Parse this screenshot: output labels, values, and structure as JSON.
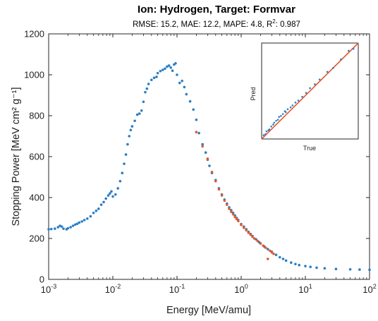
{
  "chart_data": [
    {
      "type": "scatter",
      "title": "Ion: Hydrogen,  Target: Formvar",
      "subtitle": "RMSE: 15.2,  MAE: 12.2,  MAPE: 4.8,  R",
      "subtitle_sup": "2",
      "subtitle_tail": ": 0.987",
      "xlabel": "Energy [MeV/amu]",
      "ylabel": "Stopping Power [MeV cm² g⁻¹]",
      "xscale": "log",
      "xlim": [
        0.001,
        100
      ],
      "ylim": [
        0,
        1200
      ],
      "x_ticks": [
        {
          "base": "10",
          "exp": "-3"
        },
        {
          "base": "10",
          "exp": "-2"
        },
        {
          "base": "10",
          "exp": "-1"
        },
        {
          "base": "10",
          "exp": "0"
        },
        {
          "base": "10",
          "exp": "1"
        },
        {
          "base": "10",
          "exp": "2"
        }
      ],
      "y_ticks": [
        "0",
        "200",
        "400",
        "600",
        "800",
        "1000",
        "1200"
      ],
      "grid": false,
      "colors": {
        "measured": "#1f77b4",
        "predicted": "#e8572a"
      },
      "series": [
        {
          "marker": "dot",
          "color": "#2a7fc4",
          "points": [
            [
              0.001,
              245
            ],
            [
              0.0011,
              246
            ],
            [
              0.00125,
              248
            ],
            [
              0.0014,
              255
            ],
            [
              0.0015,
              262
            ],
            [
              0.0016,
              258
            ],
            [
              0.0017,
              248
            ],
            [
              0.0019,
              245
            ],
            [
              0.002,
              250
            ],
            [
              0.0022,
              255
            ],
            [
              0.0024,
              262
            ],
            [
              0.0026,
              268
            ],
            [
              0.0028,
              272
            ],
            [
              0.003,
              278
            ],
            [
              0.0033,
              283
            ],
            [
              0.0036,
              290
            ],
            [
              0.004,
              297
            ],
            [
              0.0045,
              308
            ],
            [
              0.005,
              325
            ],
            [
              0.0055,
              335
            ],
            [
              0.006,
              345
            ],
            [
              0.0066,
              365
            ],
            [
              0.0072,
              378
            ],
            [
              0.0078,
              395
            ],
            [
              0.0085,
              410
            ],
            [
              0.009,
              420
            ],
            [
              0.0095,
              430
            ],
            [
              0.01,
              405
            ],
            [
              0.011,
              415
            ],
            [
              0.012,
              445
            ],
            [
              0.013,
              480
            ],
            [
              0.014,
              520
            ],
            [
              0.015,
              565
            ],
            [
              0.016,
              610
            ],
            [
              0.017,
              660
            ],
            [
              0.018,
              700
            ],
            [
              0.019,
              730
            ],
            [
              0.02,
              748
            ],
            [
              0.022,
              775
            ],
            [
              0.024,
              805
            ],
            [
              0.026,
              810
            ],
            [
              0.028,
              825
            ],
            [
              0.03,
              868
            ],
            [
              0.032,
              915
            ],
            [
              0.034,
              932
            ],
            [
              0.036,
              955
            ],
            [
              0.04,
              975
            ],
            [
              0.044,
              985
            ],
            [
              0.048,
              990
            ],
            [
              0.05,
              1008
            ],
            [
              0.055,
              1018
            ],
            [
              0.06,
              1024
            ],
            [
              0.065,
              1030
            ],
            [
              0.07,
              1040
            ],
            [
              0.075,
              1045
            ],
            [
              0.08,
              1035
            ],
            [
              0.085,
              1020
            ],
            [
              0.09,
              1050
            ],
            [
              0.095,
              1056
            ],
            [
              0.1,
              1000
            ],
            [
              0.11,
              960
            ],
            [
              0.12,
              970
            ],
            [
              0.13,
              940
            ],
            [
              0.14,
              905
            ],
            [
              0.16,
              870
            ],
            [
              0.18,
              830
            ],
            [
              0.2,
              780
            ],
            [
              0.22,
              715
            ],
            [
              0.25,
              660
            ],
            [
              0.28,
              620
            ],
            [
              0.3,
              585
            ],
            [
              0.32,
              555
            ],
            [
              0.35,
              520
            ],
            [
              0.4,
              485
            ],
            [
              0.45,
              445
            ],
            [
              0.5,
              415
            ],
            [
              0.55,
              390
            ],
            [
              0.6,
              370
            ],
            [
              0.65,
              352
            ],
            [
              0.7,
              338
            ],
            [
              0.75,
              325
            ],
            [
              0.8,
              312
            ],
            [
              0.85,
              300
            ],
            [
              0.9,
              290
            ],
            [
              1.0,
              270
            ],
            [
              1.1,
              258
            ],
            [
              1.2,
              245
            ],
            [
              1.3,
              232
            ],
            [
              1.4,
              222
            ],
            [
              1.5,
              212
            ],
            [
              1.7,
              196
            ],
            [
              1.9,
              182
            ],
            [
              2.0,
              176
            ],
            [
              2.3,
              160
            ],
            [
              2.6,
              148
            ],
            [
              3.0,
              135
            ],
            [
              3.5,
              120
            ],
            [
              4.0,
              108
            ],
            [
              4.5,
              100
            ],
            [
              5.0,
              92
            ],
            [
              6.0,
              82
            ],
            [
              7.0,
              75
            ],
            [
              8.0,
              70
            ],
            [
              10,
              65
            ],
            [
              12,
              61
            ],
            [
              15,
              57
            ],
            [
              20,
              54
            ],
            [
              30,
              51
            ],
            [
              50,
              49
            ],
            [
              70,
              48
            ],
            [
              100,
              47
            ]
          ]
        },
        {
          "marker": "dot",
          "color": "#e8572a",
          "points": [
            [
              0.2,
              720
            ],
            [
              0.25,
              650
            ],
            [
              0.3,
              590
            ],
            [
              0.35,
              525
            ],
            [
              0.4,
              480
            ],
            [
              0.45,
              440
            ],
            [
              0.5,
              410
            ],
            [
              0.55,
              385
            ],
            [
              0.6,
              365
            ],
            [
              0.65,
              345
            ],
            [
              0.7,
              330
            ],
            [
              0.75,
              318
            ],
            [
              0.8,
              305
            ],
            [
              0.85,
              295
            ],
            [
              0.9,
              285
            ],
            [
              1.0,
              266
            ],
            [
              1.1,
              252
            ],
            [
              1.2,
              240
            ],
            [
              1.3,
              228
            ],
            [
              1.4,
              218
            ],
            [
              1.5,
              208
            ],
            [
              1.6,
              200
            ],
            [
              1.8,
              188
            ],
            [
              2.0,
              175
            ],
            [
              2.2,
              165
            ],
            [
              2.4,
              155
            ],
            [
              2.6,
              100
            ],
            [
              2.8,
              140
            ],
            [
              3.0,
              132
            ],
            [
              3.2,
              125
            ]
          ]
        }
      ]
    },
    {
      "type": "scatter",
      "xlabel": "True",
      "ylabel": "Pred",
      "xlim": [
        0,
        1
      ],
      "ylim": [
        0,
        1
      ],
      "colors": {
        "points": "#2a7fc4",
        "fit_line": "#e8572a"
      },
      "fit_line": [
        [
          0,
          0
        ],
        [
          1,
          1
        ]
      ],
      "points": [
        [
          0.02,
          0.04
        ],
        [
          0.04,
          0.05
        ],
        [
          0.05,
          0.08
        ],
        [
          0.07,
          0.09
        ],
        [
          0.08,
          0.1
        ],
        [
          0.1,
          0.13
        ],
        [
          0.12,
          0.15
        ],
        [
          0.13,
          0.17
        ],
        [
          0.15,
          0.19
        ],
        [
          0.17,
          0.2
        ],
        [
          0.18,
          0.23
        ],
        [
          0.2,
          0.24
        ],
        [
          0.22,
          0.26
        ],
        [
          0.24,
          0.29
        ],
        [
          0.25,
          0.28
        ],
        [
          0.27,
          0.31
        ],
        [
          0.3,
          0.33
        ],
        [
          0.32,
          0.35
        ],
        [
          0.35,
          0.38
        ],
        [
          0.38,
          0.4
        ],
        [
          0.42,
          0.44
        ],
        [
          0.46,
          0.48
        ],
        [
          0.5,
          0.53
        ],
        [
          0.55,
          0.57
        ],
        [
          0.6,
          0.62
        ],
        [
          0.68,
          0.7
        ],
        [
          0.74,
          0.74
        ],
        [
          0.82,
          0.83
        ],
        [
          0.9,
          0.92
        ],
        [
          0.95,
          0.94
        ]
      ]
    }
  ]
}
